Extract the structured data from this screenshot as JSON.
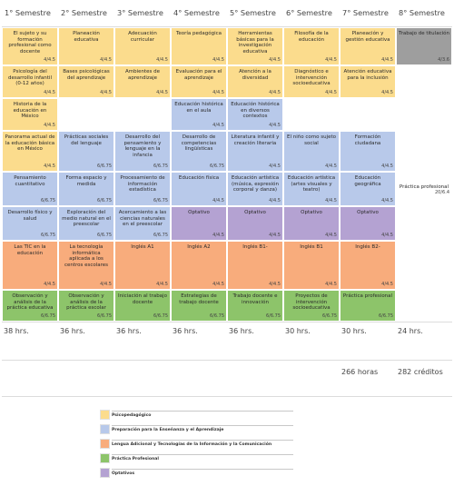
{
  "semesters": [
    "1° Semestre",
    "2° Semestre",
    "3° Semestre",
    "4° Semestre",
    "5° Semestre",
    "6° Semestre",
    "7° Semestre",
    "8° Semestre"
  ],
  "courses": [
    {
      "name": "El sujeto y su formación profesional como docente",
      "credits": "4/4.5",
      "area": "psi"
    },
    {
      "name": "Planeación educativa",
      "credits": "4/4.5",
      "area": "psi"
    },
    {
      "name": "Adecuación curricular",
      "credits": "4/4.5",
      "area": "psi"
    },
    {
      "name": "Teoría pedagógica",
      "credits": "4/4.5",
      "area": "psi"
    },
    {
      "name": "Herramientas básicas para la investigación educativa",
      "credits": "4/4.5",
      "area": "psi"
    },
    {
      "name": "Filosofía de la educación",
      "credits": "4/4.5",
      "area": "psi"
    },
    {
      "name": "Planeación y gestión educativa",
      "credits": "4/4.5",
      "area": "psi"
    },
    {
      "name": "Trabajo de titulación",
      "credits": "4/3.6",
      "area": "tit"
    },
    {
      "name": "Psicología del desarrollo infantil (0-12 años)",
      "credits": "4/4.5",
      "area": "psi"
    },
    {
      "name": "Bases psicológicas del aprendizaje",
      "credits": "4/4.5",
      "area": "psi"
    },
    {
      "name": "Ambientes de aprendizaje",
      "credits": "4/4.5",
      "area": "psi"
    },
    {
      "name": "Evaluación para el aprendizaje",
      "credits": "4/4.5",
      "area": "psi"
    },
    {
      "name": "Atención a la diversidad",
      "credits": "4/4.5",
      "area": "psi"
    },
    {
      "name": "Diagnóstico e intervención socioeducativa",
      "credits": "4/4.5",
      "area": "psi"
    },
    {
      "name": "Atención educativa para la inclusión",
      "credits": "4/4.5",
      "area": "psi"
    },
    {
      "name": "Historia de la educación en México",
      "credits": "4/4.5",
      "area": "psi"
    },
    {
      "name": "Educación histórica en el aula",
      "credits": "4/4.5",
      "area": "pre"
    },
    {
      "name": "Educación histórica en diversos contextos",
      "credits": "4/4.5",
      "area": "pre"
    },
    {
      "name": "Panorama actual de la educación básica en México",
      "credits": "4/4.5",
      "area": "psi"
    },
    {
      "name": "Prácticas sociales del lenguaje",
      "credits": "6/6.75",
      "area": "pre"
    },
    {
      "name": "Desarrollo del pensamiento y lenguaje en la infancia",
      "credits": "6/6.75",
      "area": "pre"
    },
    {
      "name": "Desarrollo de competencias lingüísticas",
      "credits": "6/6.75",
      "area": "pre"
    },
    {
      "name": "Literatura infantil y creación literaria",
      "credits": "4/4.5",
      "area": "pre"
    },
    {
      "name": "El niño como sujeto social",
      "credits": "4/4.5",
      "area": "pre"
    },
    {
      "name": "Formación ciudadana",
      "credits": "4/4.5",
      "area": "pre"
    },
    {
      "name": "Pensamiento cuantitativo",
      "credits": "6/6.75",
      "area": "pre"
    },
    {
      "name": "Forma espacio y medida",
      "credits": "6/6.75",
      "area": "pre"
    },
    {
      "name": "Procesamiento de información estadística",
      "credits": "6/6.75",
      "area": "pre"
    },
    {
      "name": "Educación física",
      "credits": "4/4.5",
      "area": "pre"
    },
    {
      "name": "Educación artística (música, expresión corporal y danza)",
      "credits": "4/4.5",
      "area": "pre"
    },
    {
      "name": "Educación artística (artes visuales y teatro)",
      "credits": "4/4.5",
      "area": "pre"
    },
    {
      "name": "Educación geográfica",
      "credits": "4/4.5",
      "area": "pre"
    },
    {
      "name": "Práctica profesional",
      "credits": "20/6.4",
      "area": "none"
    },
    {
      "name": "Desarrollo físico y salud",
      "credits": "6/6.75",
      "area": "pre"
    },
    {
      "name": "Exploración del medio natural en el preescolar",
      "credits": "6/6.75",
      "area": "pre"
    },
    {
      "name": "Acercamiento a las ciencias naturales en el preescolar",
      "credits": "6/6.75",
      "area": "pre"
    },
    {
      "name": "Optativo",
      "credits": "4/4.5",
      "area": "opt"
    },
    {
      "name": "Optativo",
      "credits": "4/4.5",
      "area": "opt"
    },
    {
      "name": "Optativo",
      "credits": "4/4.5",
      "area": "opt"
    },
    {
      "name": "Optativo",
      "credits": "4/4.5",
      "area": "opt"
    },
    {
      "name": "Las TIC en la educación",
      "credits": "4/4.5",
      "area": "len"
    },
    {
      "name": "La tecnología informática aplicada a los centros escolares",
      "credits": "4/4.5",
      "area": "len"
    },
    {
      "name": "Inglés A1",
      "credits": "4/4.5",
      "area": "len"
    },
    {
      "name": "Inglés A2",
      "credits": "4/4.5",
      "area": "len"
    },
    {
      "name": "Inglés B1-",
      "credits": "4/4.5",
      "area": "len"
    },
    {
      "name": "Inglés B1",
      "credits": "4/4.5",
      "area": "len"
    },
    {
      "name": "Inglés B2-",
      "credits": "4/4.5",
      "area": "len"
    },
    {
      "name": "Observación y análisis de la práctica educativa",
      "credits": "6/6.75",
      "area": "pra"
    },
    {
      "name": "Observación y análisis de la práctica escolar",
      "credits": "6/6.75",
      "area": "pra"
    },
    {
      "name": "Iniciación al trabajo docente",
      "credits": "6/6.75",
      "area": "pra"
    },
    {
      "name": "Estrategias de trabajo docente",
      "credits": "6/6.75",
      "area": "pra"
    },
    {
      "name": "Trabajo docente e innovación",
      "credits": "6/6.75",
      "area": "pra"
    },
    {
      "name": "Proyectos de intervención socioeducativa",
      "credits": "6/6.75",
      "area": "pra"
    },
    {
      "name": "Práctica profesional",
      "credits": "6/6.75",
      "area": "pra"
    }
  ],
  "hours": [
    "38 hrs.",
    "36 hrs.",
    "36 hrs.",
    "36 hrs.",
    "36 hrs.",
    "30 hrs.",
    "30 hrs.",
    "24 hrs."
  ],
  "totals": {
    "hours": "266 horas",
    "credits": "282 créditos"
  },
  "legend": [
    {
      "label": "Psicopedagógico",
      "color": "#fbdc8d"
    },
    {
      "label": "Preparación para la Enseñanza y el Aprendizaje",
      "color": "#b8c9ea"
    },
    {
      "label": "Lengua Adicional y Tecnologías de la Información y la Comunicación",
      "color": "#f8ac7c"
    },
    {
      "label": "Práctica Profesional",
      "color": "#8dc46a"
    },
    {
      "label": "Optativos",
      "color": "#b4a2d2"
    }
  ]
}
